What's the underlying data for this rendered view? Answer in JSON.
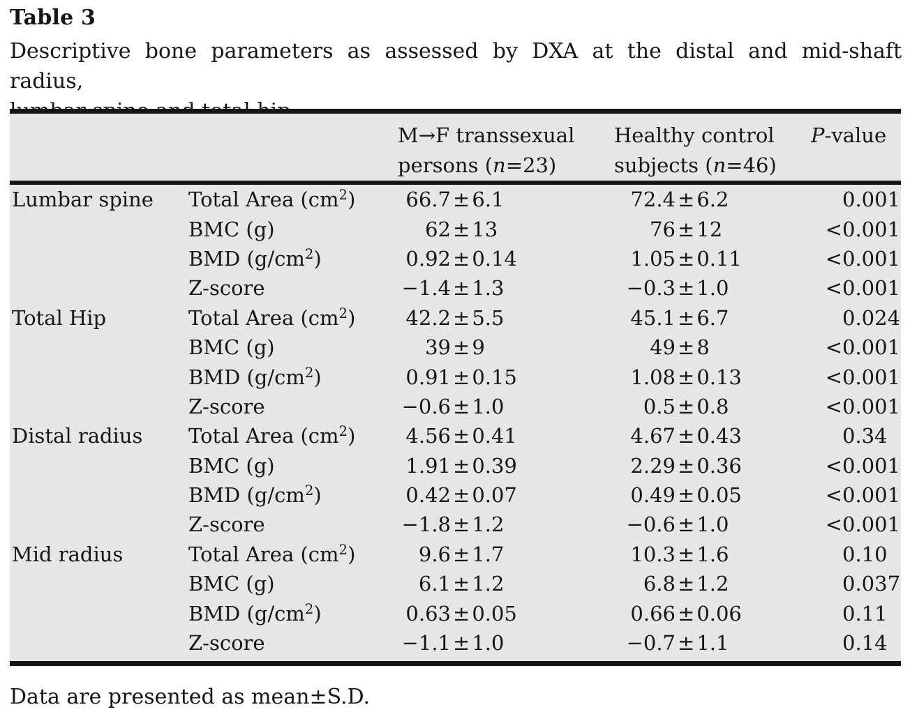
{
  "title": "Table 3",
  "caption_line1": "Descriptive bone parameters as assessed by DXA at the distal and mid-shaft radius,",
  "caption_line2": "lumbar spine and total hip",
  "header": {
    "group1_line1": "M→F transsexual",
    "group1_line2_pre": "persons (",
    "group1_line2_n": "n",
    "group1_line2_post": "=23)",
    "group2_line1": "Healthy control",
    "group2_line2_pre": "subjects (",
    "group2_line2_n": "n",
    "group2_line2_post": "=46)",
    "pvalue_p": "P",
    "pvalue_suffix": "-value"
  },
  "rows": [
    {
      "section": "Lumbar spine",
      "param_pre": "Total Area (cm",
      "param_sup": "2",
      "param_post": ")",
      "v1_left": "66.7",
      "v1_pm": "±",
      "v1_right": "6.1",
      "v2_left": "72.4",
      "v2_pm": "±",
      "v2_right": "6.2",
      "p_prefix": "",
      "p_num": "0.001"
    },
    {
      "section": "",
      "param_pre": "BMC (g)",
      "param_sup": "",
      "param_post": "",
      "v1_left": "62",
      "v1_pm": "±",
      "v1_right": "13",
      "v2_left": "76",
      "v2_pm": "±",
      "v2_right": "12",
      "p_prefix": "<",
      "p_num": "0.001"
    },
    {
      "section": "",
      "param_pre": "BMD (g/cm",
      "param_sup": "2",
      "param_post": ")",
      "v1_left": "0.92",
      "v1_pm": "±",
      "v1_right": "0.14",
      "v2_left": "1.05",
      "v2_pm": "±",
      "v2_right": "0.11",
      "p_prefix": "<",
      "p_num": "0.001"
    },
    {
      "section": "",
      "param_pre": "Z-score",
      "param_sup": "",
      "param_post": "",
      "v1_left": "−1.4",
      "v1_pm": "±",
      "v1_right": "1.3",
      "v2_left": "−0.3",
      "v2_pm": "±",
      "v2_right": "1.0",
      "p_prefix": "<",
      "p_num": "0.001"
    },
    {
      "section": "Total Hip",
      "param_pre": "Total Area (cm",
      "param_sup": "2",
      "param_post": ")",
      "v1_left": "42.2",
      "v1_pm": "±",
      "v1_right": "5.5",
      "v2_left": "45.1",
      "v2_pm": "±",
      "v2_right": "6.7",
      "p_prefix": "",
      "p_num": "0.024"
    },
    {
      "section": "",
      "param_pre": "BMC (g)",
      "param_sup": "",
      "param_post": "",
      "v1_left": "39",
      "v1_pm": "±",
      "v1_right": "9",
      "v2_left": "49",
      "v2_pm": "±",
      "v2_right": "8",
      "p_prefix": "<",
      "p_num": "0.001"
    },
    {
      "section": "",
      "param_pre": "BMD (g/cm",
      "param_sup": "2",
      "param_post": ")",
      "v1_left": "0.91",
      "v1_pm": "±",
      "v1_right": "0.15",
      "v2_left": "1.08",
      "v2_pm": "±",
      "v2_right": "0.13",
      "p_prefix": "<",
      "p_num": "0.001"
    },
    {
      "section": "",
      "param_pre": "Z-score",
      "param_sup": "",
      "param_post": "",
      "v1_left": "−0.6",
      "v1_pm": "±",
      "v1_right": "1.0",
      "v2_left": "0.5",
      "v2_pm": "±",
      "v2_right": "0.8",
      "p_prefix": "<",
      "p_num": "0.001"
    },
    {
      "section": "Distal radius",
      "param_pre": "Total Area (cm",
      "param_sup": "2",
      "param_post": ")",
      "v1_left": "4.56",
      "v1_pm": "±",
      "v1_right": "0.41",
      "v2_left": "4.67",
      "v2_pm": "±",
      "v2_right": "0.43",
      "p_prefix": "",
      "p_num": "0.34"
    },
    {
      "section": "",
      "param_pre": "BMC (g)",
      "param_sup": "",
      "param_post": "",
      "v1_left": "1.91",
      "v1_pm": "±",
      "v1_right": "0.39",
      "v2_left": "2.29",
      "v2_pm": "±",
      "v2_right": "0.36",
      "p_prefix": "<",
      "p_num": "0.001"
    },
    {
      "section": "",
      "param_pre": "BMD (g/cm",
      "param_sup": "2",
      "param_post": ")",
      "v1_left": "0.42",
      "v1_pm": "±",
      "v1_right": "0.07",
      "v2_left": "0.49",
      "v2_pm": "±",
      "v2_right": "0.05",
      "p_prefix": "<",
      "p_num": "0.001"
    },
    {
      "section": "",
      "param_pre": "Z-score",
      "param_sup": "",
      "param_post": "",
      "v1_left": "−1.8",
      "v1_pm": "±",
      "v1_right": "1.2",
      "v2_left": "−0.6",
      "v2_pm": "±",
      "v2_right": "1.0",
      "p_prefix": "<",
      "p_num": "0.001"
    },
    {
      "section": "Mid radius",
      "param_pre": "Total Area (cm",
      "param_sup": "2",
      "param_post": ")",
      "v1_left": "9.6",
      "v1_pm": "±",
      "v1_right": "1.7",
      "v2_left": "10.3",
      "v2_pm": "±",
      "v2_right": "1.6",
      "p_prefix": "",
      "p_num": "0.10"
    },
    {
      "section": "",
      "param_pre": "BMC (g)",
      "param_sup": "",
      "param_post": "",
      "v1_left": "6.1",
      "v1_pm": "±",
      "v1_right": "1.2",
      "v2_left": "6.8",
      "v2_pm": "±",
      "v2_right": "1.2",
      "p_prefix": "",
      "p_num": "0.037"
    },
    {
      "section": "",
      "param_pre": "BMD (g/cm",
      "param_sup": "2",
      "param_post": ")",
      "v1_left": "0.63",
      "v1_pm": "±",
      "v1_right": "0.05",
      "v2_left": "0.66",
      "v2_pm": "±",
      "v2_right": "0.06",
      "p_prefix": "",
      "p_num": "0.11"
    },
    {
      "section": "",
      "param_pre": "Z-score",
      "param_sup": "",
      "param_post": "",
      "v1_left": "−1.1",
      "v1_pm": "±",
      "v1_right": "1.0",
      "v2_left": "−0.7",
      "v2_pm": "±",
      "v2_right": "1.1",
      "p_prefix": "",
      "p_num": "0.14"
    }
  ],
  "footnote": "Data are presented as mean±S.D."
}
